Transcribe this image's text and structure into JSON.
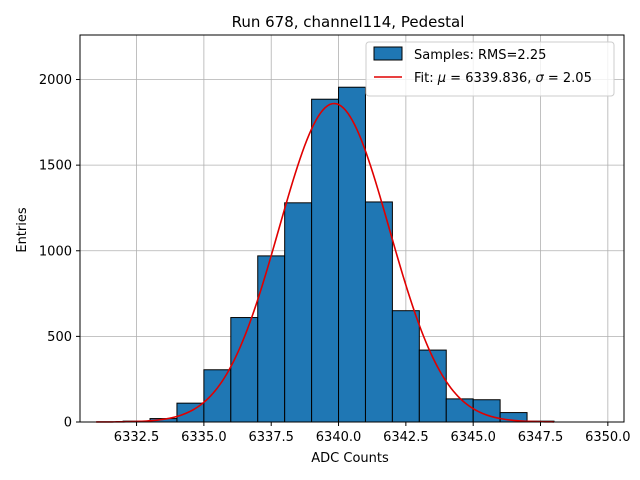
{
  "chart_data": {
    "type": "bar",
    "title": "Run 678, channel114, Pedestal",
    "xlabel": "ADC Counts",
    "ylabel": "Entries",
    "xlim": [
      6330.4,
      6350.6
    ],
    "ylim": [
      0,
      2260
    ],
    "xticks": [
      6332.5,
      6335.0,
      6337.5,
      6340.0,
      6342.5,
      6345.0,
      6347.5,
      6350.0
    ],
    "xtick_labels": [
      "6332.5",
      "6335.0",
      "6337.5",
      "6340.0",
      "6342.5",
      "6345.0",
      "6347.5",
      "6350.0"
    ],
    "yticks": [
      0,
      500,
      1000,
      1500,
      2000
    ],
    "ytick_labels": [
      "0",
      "500",
      "1000",
      "1500",
      "2000"
    ],
    "grid": true,
    "legend_position": "top-right",
    "bar_color": "#1f77b4",
    "fit_color": "#e00000",
    "histogram": {
      "label": "Samples: RMS=2.25",
      "bins": [
        {
          "start": 6332,
          "end": 6333,
          "count": 5
        },
        {
          "start": 6333,
          "end": 6334,
          "count": 20
        },
        {
          "start": 6334,
          "end": 6335,
          "count": 110
        },
        {
          "start": 6335,
          "end": 6336,
          "count": 305
        },
        {
          "start": 6336,
          "end": 6337,
          "count": 610
        },
        {
          "start": 6337,
          "end": 6338,
          "count": 970
        },
        {
          "start": 6338,
          "end": 6339,
          "count": 1280
        },
        {
          "start": 6339,
          "end": 6340,
          "count": 1885
        },
        {
          "start": 6340,
          "end": 6341,
          "count": 1955
        },
        {
          "start": 6341,
          "end": 6342,
          "count": 1285
        },
        {
          "start": 6342,
          "end": 6343,
          "count": 650
        },
        {
          "start": 6343,
          "end": 6344,
          "count": 420
        },
        {
          "start": 6344,
          "end": 6345,
          "count": 135
        },
        {
          "start": 6345,
          "end": 6346,
          "count": 130
        },
        {
          "start": 6346,
          "end": 6347,
          "count": 55
        },
        {
          "start": 6347,
          "end": 6348,
          "count": 5
        }
      ]
    },
    "fit": {
      "label_prefix": "Fit: ",
      "mu_symbol": "μ",
      "mu_text": " = 6339.836, ",
      "sigma_symbol": "σ",
      "sigma_text": " = 2.05",
      "mu": 6339.836,
      "sigma": 2.05,
      "amplitude": 1860,
      "x_range": [
        6331,
        6348
      ]
    }
  }
}
